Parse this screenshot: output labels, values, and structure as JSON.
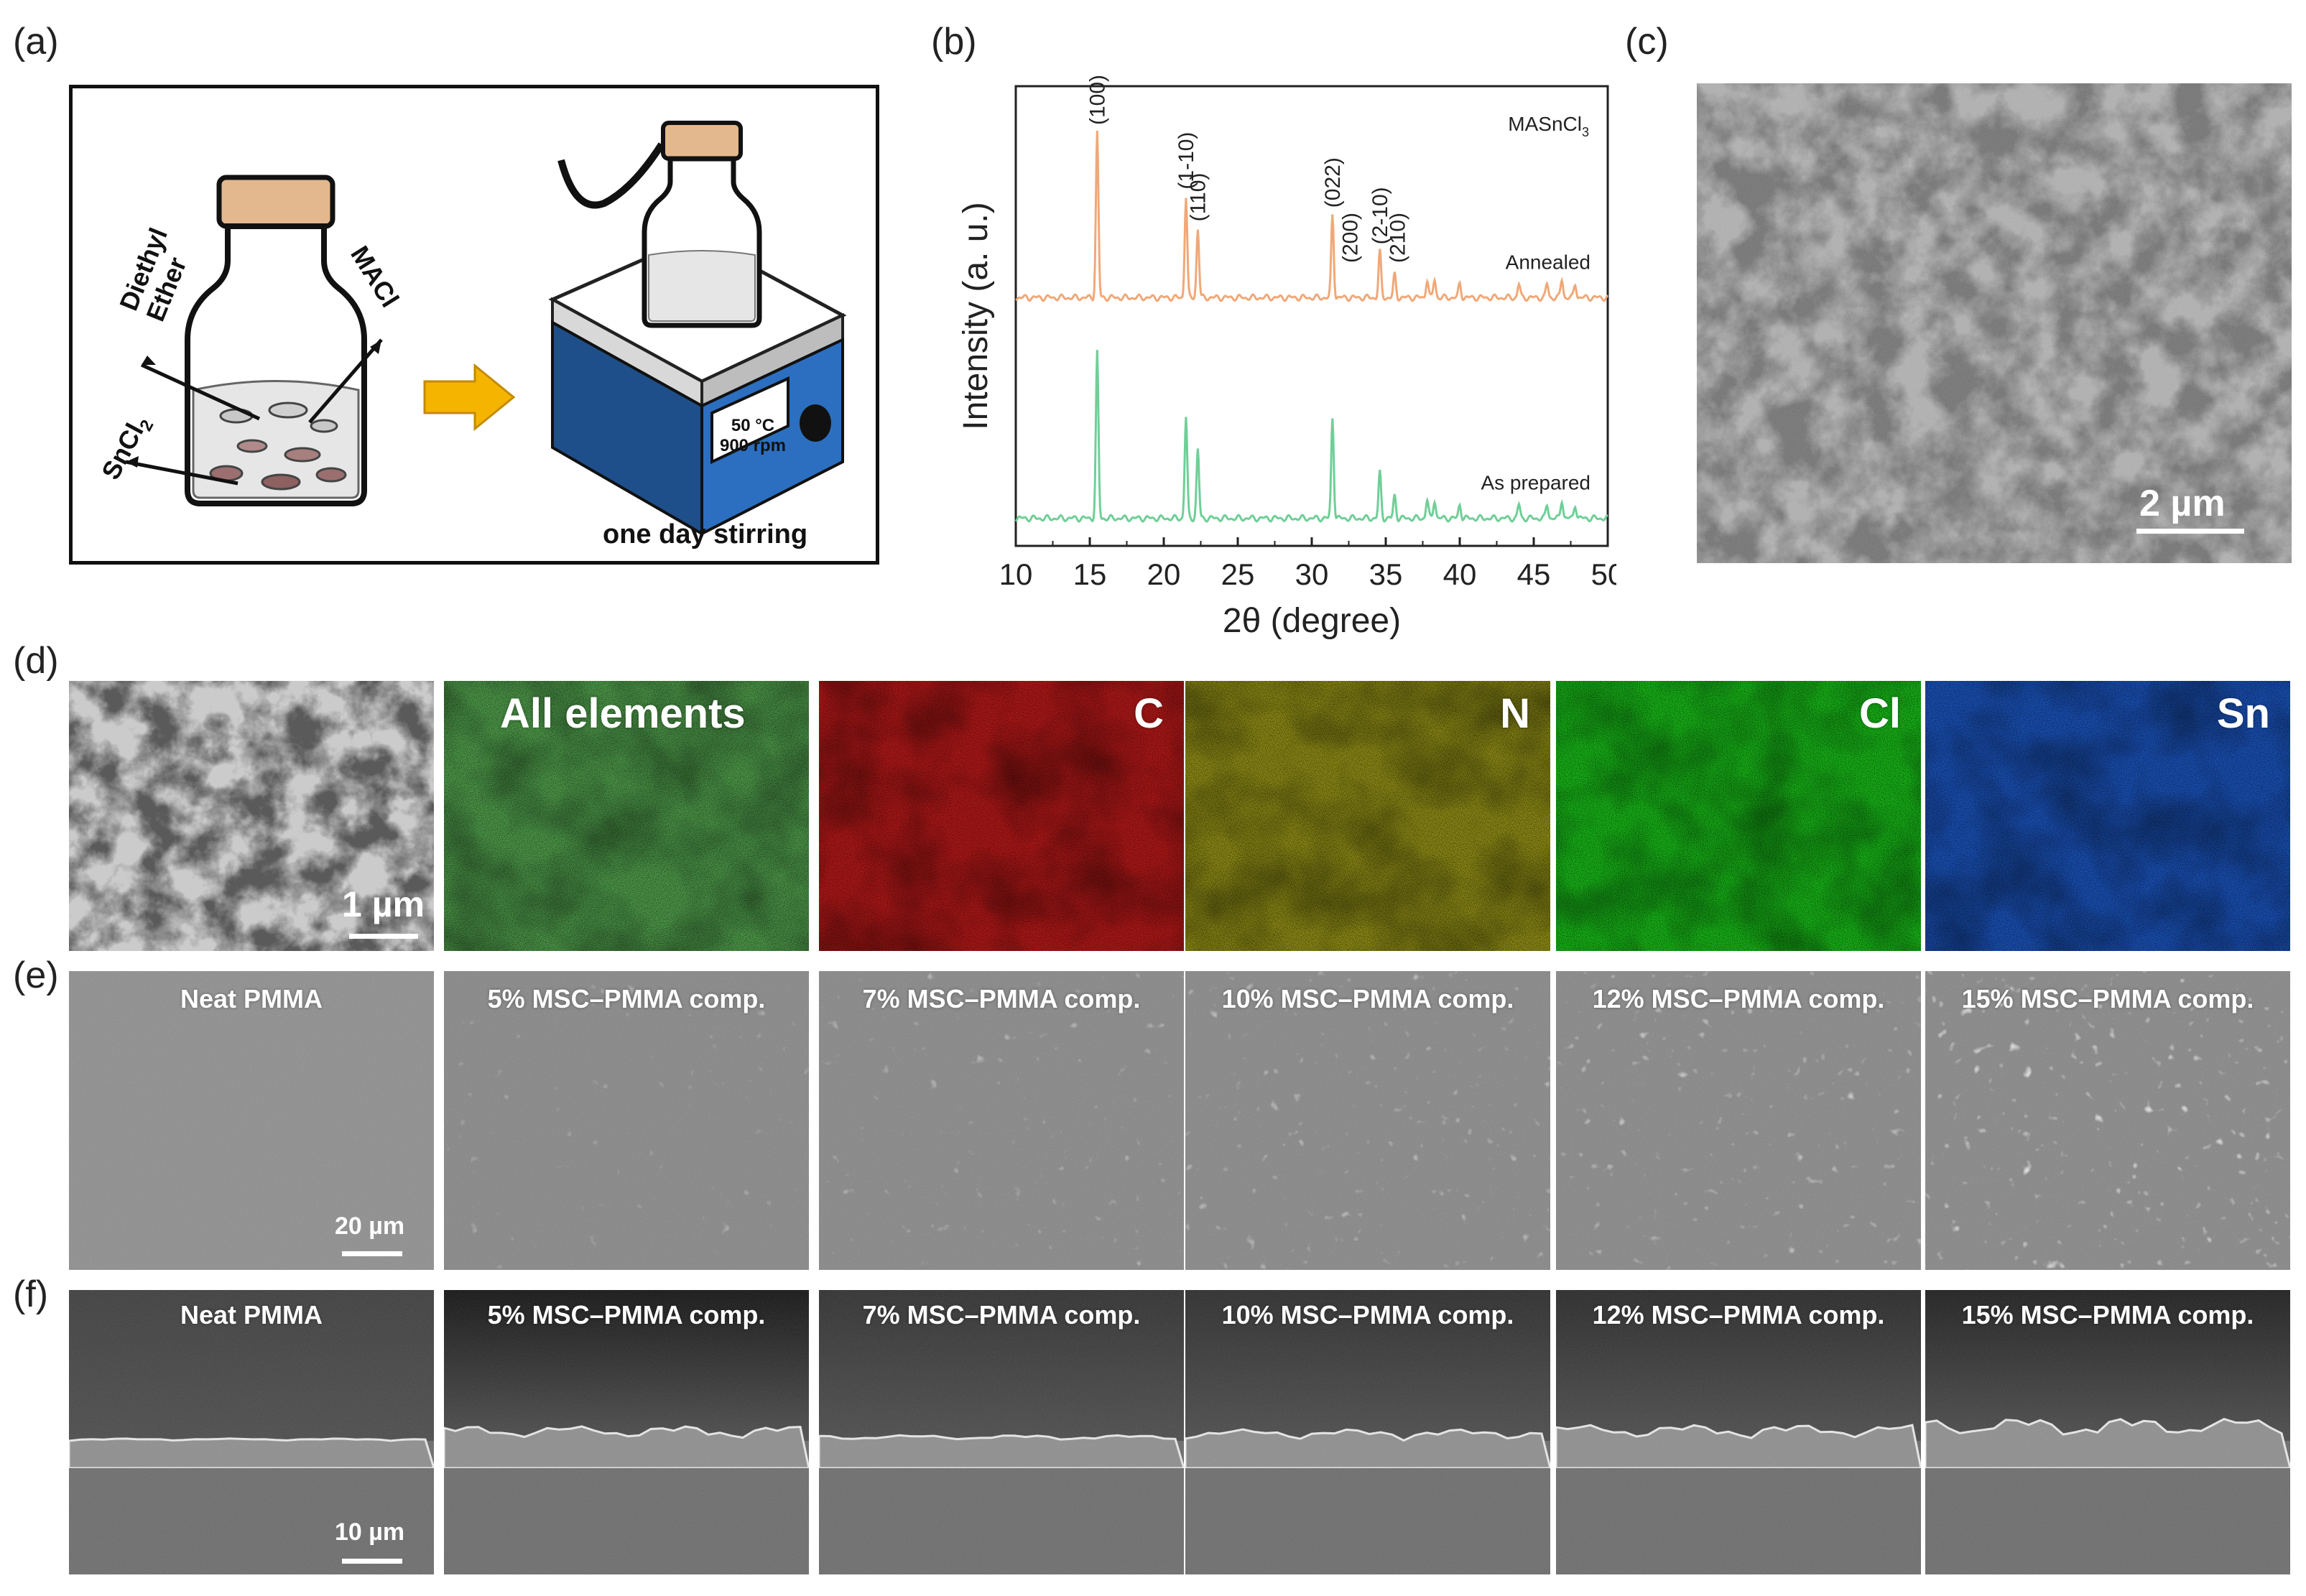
{
  "panels": {
    "a": "(a)",
    "b": "(b)",
    "c": "(c)",
    "d": "(d)",
    "e": "(e)",
    "f": "(f)"
  },
  "panel_a": {
    "diethyl_ether": [
      "Diethyl",
      "Ether"
    ],
    "macl": "MACl",
    "sncl2": "SnCl",
    "sncl2_sub": "2",
    "hotplate_temp": "50 °C",
    "hotplate_rpm": "900 rpm",
    "caption": "one day stirring"
  },
  "panel_c": {
    "scale": "2 µm"
  },
  "panel_d": {
    "scale": "1 µm",
    "maps": [
      "All elements",
      "C",
      "N",
      "Cl",
      "Sn"
    ],
    "colors": [
      "#4e9a4a",
      "#b01818",
      "#8c8a16",
      "#18b418",
      "#1a50b4"
    ]
  },
  "panel_e": {
    "labels": [
      "Neat PMMA",
      "5% MSC–PMMA comp.",
      "7% MSC–PMMA comp.",
      "10% MSC–PMMA comp.",
      "12% MSC–PMMA comp.",
      "15% MSC–PMMA comp."
    ],
    "scale": "20 µm"
  },
  "panel_f": {
    "labels": [
      "Neat PMMA",
      "5% MSC–PMMA comp.",
      "7% MSC–PMMA comp.",
      "10% MSC–PMMA comp.",
      "12% MSC–PMMA comp.",
      "15% MSC–PMMA comp."
    ],
    "scale": "10 µm"
  },
  "chart_data": {
    "type": "line",
    "legend_text": "MASnCl",
    "legend_sub": "3",
    "xlabel": "2θ (degree)",
    "ylabel": "Intensity (a. u.)",
    "xlim": [
      10,
      50
    ],
    "xticks": [
      10,
      15,
      20,
      25,
      30,
      35,
      40,
      45,
      50
    ],
    "series": [
      {
        "name": "Annealed",
        "color": "#f0a878",
        "baseline": 0.46,
        "peaks": [
          [
            15.5,
            0.36
          ],
          [
            21.5,
            0.22
          ],
          [
            22.3,
            0.15
          ],
          [
            31.4,
            0.18
          ],
          [
            34.6,
            0.1
          ],
          [
            35.6,
            0.05
          ],
          [
            37.8,
            0.04
          ],
          [
            38.3,
            0.04
          ],
          [
            40.0,
            0.03
          ],
          [
            44.0,
            0.03
          ],
          [
            45.9,
            0.03
          ],
          [
            46.9,
            0.04
          ],
          [
            47.8,
            0.03
          ]
        ]
      },
      {
        "name": "As prepared",
        "color": "#6fcf97",
        "baseline": 0.94,
        "peaks": [
          [
            15.5,
            0.36
          ],
          [
            21.5,
            0.22
          ],
          [
            22.3,
            0.15
          ],
          [
            31.4,
            0.22
          ],
          [
            34.6,
            0.1
          ],
          [
            35.6,
            0.05
          ],
          [
            37.8,
            0.04
          ],
          [
            38.3,
            0.04
          ],
          [
            40.0,
            0.03
          ],
          [
            44.0,
            0.03
          ],
          [
            45.9,
            0.03
          ],
          [
            46.9,
            0.04
          ],
          [
            47.8,
            0.03
          ]
        ]
      }
    ],
    "annotations": [
      {
        "text": "(100)",
        "x": 15.5
      },
      {
        "text": "(1-10)",
        "x": 21.5
      },
      {
        "text": "(110)",
        "x": 22.3
      },
      {
        "text": "(022)",
        "x": 31.4
      },
      {
        "text": "(200)",
        "x": 32.6
      },
      {
        "text": "(2-10)",
        "x": 34.6
      },
      {
        "text": "(210)",
        "x": 35.8
      }
    ]
  }
}
